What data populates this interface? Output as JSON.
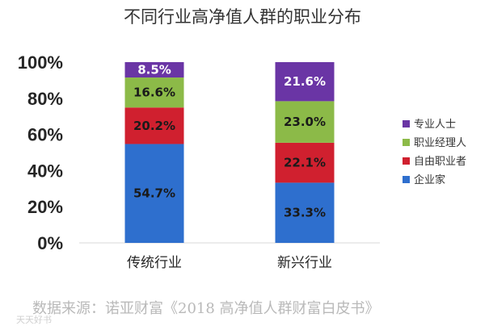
{
  "chart_data": {
    "type": "bar",
    "stacked": true,
    "percent": true,
    "title": "不同行业高净值人群的职业分布",
    "categories": [
      "传统行业",
      "新兴行业"
    ],
    "y_ticks": [
      "0%",
      "20%",
      "40%",
      "60%",
      "80%",
      "100%"
    ],
    "ylim": [
      0,
      100
    ],
    "legend_position": "right",
    "series": [
      {
        "name": "企业家",
        "color": "#2e6fce",
        "values": [
          54.7,
          33.3
        ],
        "labels": [
          "54.7%",
          "33.3%"
        ],
        "label_color": "#1a1a1a"
      },
      {
        "name": "自由职业者",
        "color": "#d0202f",
        "values": [
          20.2,
          22.1
        ],
        "labels": [
          "20.2%",
          "22.1%"
        ],
        "label_color": "#1a1a1a"
      },
      {
        "name": "职业经理人",
        "color": "#8cba48",
        "values": [
          16.6,
          23.0
        ],
        "labels": [
          "16.6%",
          "23.0%"
        ],
        "label_color": "#1a1a1a"
      },
      {
        "name": "专业人士",
        "color": "#6a35a5",
        "values": [
          8.5,
          21.6
        ],
        "labels": [
          "8.5%",
          "21.6%"
        ],
        "label_color": "#ffffff"
      }
    ],
    "legend_order": [
      "专业人士",
      "职业经理人",
      "自由职业者",
      "企业家"
    ]
  },
  "source": "数据来源：诺亚财富《2018 高净值人群财富白皮书》",
  "watermark": "天天好书"
}
